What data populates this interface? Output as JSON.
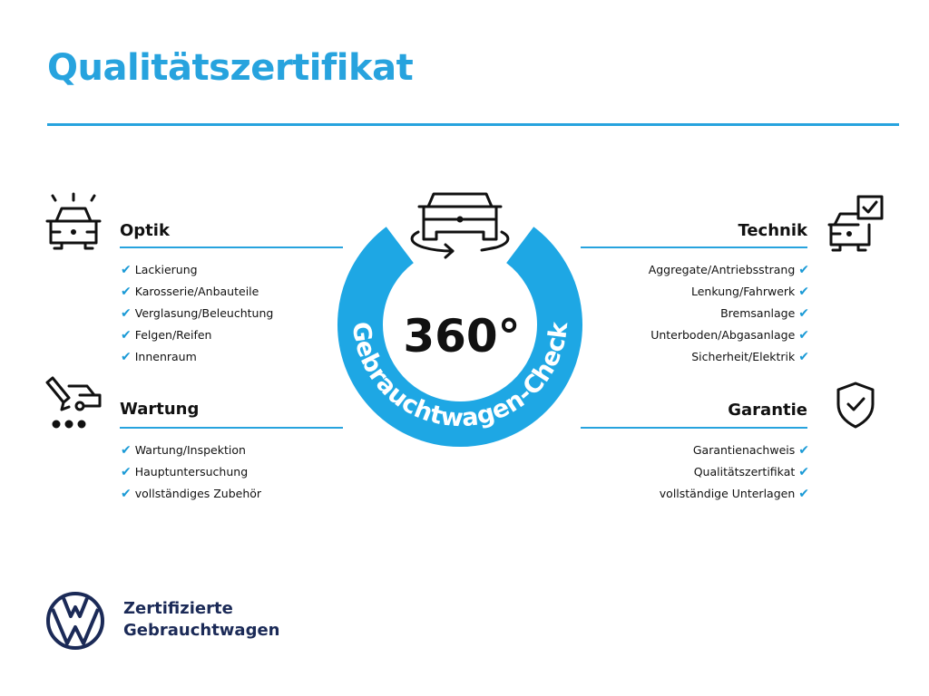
{
  "title": "Qualitätszertifikat",
  "accent_color": "#27a3de",
  "center": {
    "big": "360°",
    "ring_text": "Gebrauchtwagen-Check",
    "icon": "car-rotate-icon"
  },
  "sections": {
    "optik": {
      "heading": "Optik",
      "icon": "car-lights-icon",
      "items": [
        "Lackierung",
        "Karosserie/Anbauteile",
        "Verglasung/Beleuchtung",
        "Felgen/Reifen",
        "Innenraum"
      ]
    },
    "wartung": {
      "heading": "Wartung",
      "icon": "service-van-icon",
      "items": [
        "Wartung/Inspektion",
        "Hauptuntersuchung",
        "vollständiges Zubehör"
      ]
    },
    "technik": {
      "heading": "Technik",
      "icon": "car-checklist-icon",
      "items": [
        "Aggregate/Antriebsstrang",
        "Lenkung/Fahrwerk",
        "Bremsanlage",
        "Unterboden/Abgasanlage",
        "Sicherheit/Elektrik"
      ]
    },
    "garantie": {
      "heading": "Garantie",
      "icon": "shield-check-icon",
      "items": [
        "Garantienachweis",
        "Qualitätszertifikat",
        "vollständige Unterlagen"
      ]
    }
  },
  "check": "✔",
  "footer": {
    "line1": "Zertifizierte",
    "line2": "Gebrauchtwagen",
    "logo": "VW"
  }
}
